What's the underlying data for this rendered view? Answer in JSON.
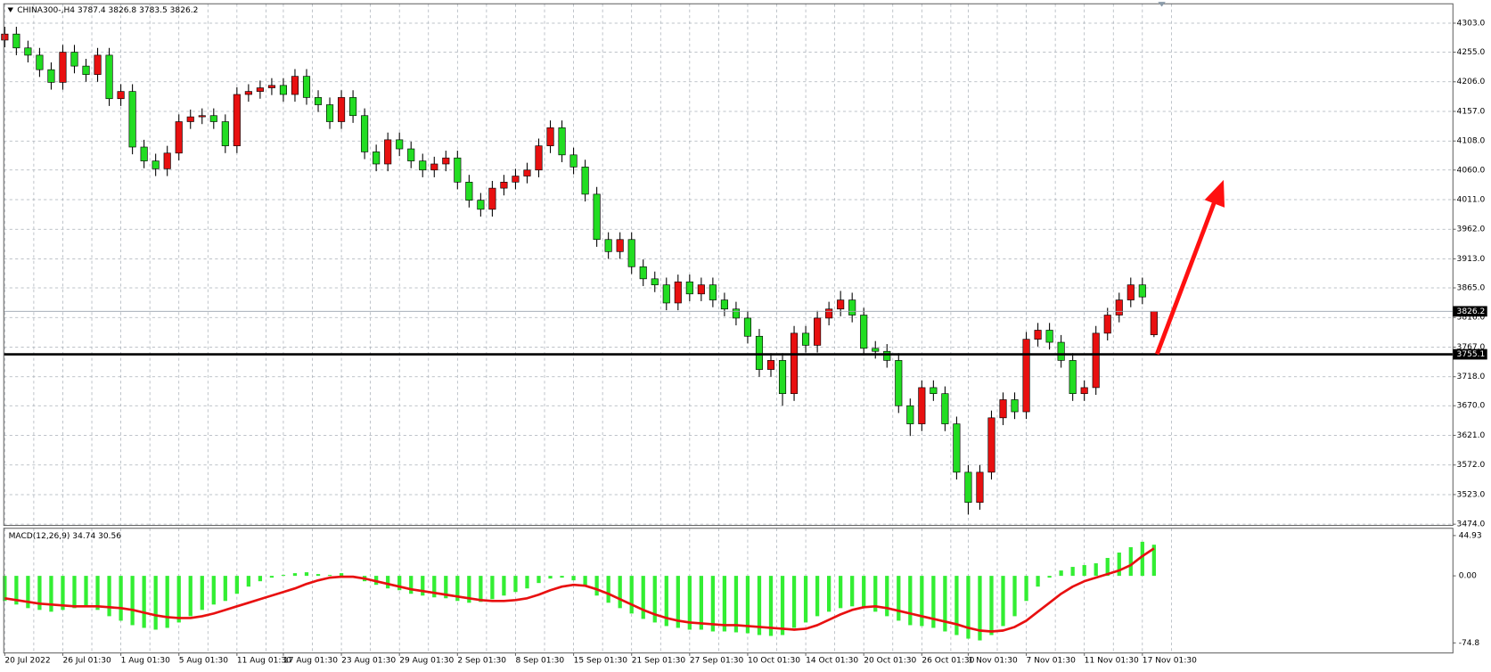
{
  "chart_data": [
    {
      "type": "candlestick",
      "title": "CHINA300-,H4  3787.4 3826.8 3783.5 3826.2",
      "categories": [
        "20 Jul 2022",
        null,
        null,
        null,
        null,
        "26 Jul 01:30",
        null,
        null,
        null,
        null,
        "1 Aug 01:30",
        null,
        null,
        null,
        null,
        "5 Aug 01:30",
        null,
        null,
        null,
        null,
        "11 Aug 01:30",
        null,
        null,
        null,
        "17 Aug 01:30",
        null,
        null,
        null,
        null,
        "23 Aug 01:30",
        null,
        null,
        null,
        null,
        "29 Aug 01:30",
        null,
        null,
        null,
        null,
        "2 Sep 01:30",
        null,
        null,
        null,
        null,
        "8 Sep 01:30",
        null,
        null,
        null,
        null,
        "15 Sep 01:30",
        null,
        null,
        null,
        null,
        "21 Sep 01:30",
        null,
        null,
        null,
        null,
        "27 Sep 01:30",
        null,
        null,
        null,
        null,
        "10 Oct 01:30",
        null,
        null,
        null,
        null,
        "14 Oct 01:30",
        null,
        null,
        null,
        null,
        "20 Oct 01:30",
        null,
        null,
        null,
        null,
        "26 Oct 01:30",
        null,
        null,
        null,
        "1 Nov 01:30",
        null,
        null,
        null,
        null,
        "7 Nov 01:30",
        null,
        null,
        null,
        null,
        "11 Nov 01:30",
        null,
        null,
        null,
        null,
        "17 Nov 01:30",
        null
      ],
      "open": [
        4275,
        4285,
        4262,
        4250,
        4226,
        4205,
        4255,
        4232,
        4218,
        4250,
        4178,
        4190,
        4098,
        4075,
        4062,
        4088,
        4140,
        4148,
        4150,
        4140,
        4100,
        4185,
        4190,
        4196,
        4200,
        4185,
        4215,
        4180,
        4168,
        4140,
        4180,
        4150,
        4090,
        4070,
        4110,
        4095,
        4075,
        4060,
        4070,
        4080,
        4040,
        4010,
        3995,
        4030,
        4040,
        4050,
        4060,
        4100,
        4130,
        4085,
        4065,
        4020,
        3945,
        3925,
        3945,
        3900,
        3880,
        3870,
        3840,
        3875,
        3855,
        3870,
        3845,
        3830,
        3815,
        3785,
        3730,
        3745,
        3690,
        3790,
        3770,
        3815,
        3830,
        3845,
        3820,
        3765,
        3760,
        3745,
        3670,
        3640,
        3700,
        3690,
        3640,
        3560,
        3510,
        3560,
        3650,
        3680,
        3660,
        3780,
        3795,
        3775,
        3745,
        3690,
        3700,
        3790,
        3820,
        3845,
        3870,
        3787.4
      ],
      "high": [
        4297,
        4297,
        4274,
        4262,
        4238,
        4267,
        4267,
        4244,
        4262,
        4262,
        4202,
        4202,
        4110,
        4087,
        4100,
        4152,
        4160,
        4162,
        4162,
        4152,
        4197,
        4202,
        4208,
        4212,
        4212,
        4227,
        4227,
        4192,
        4180,
        4192,
        4192,
        4162,
        4102,
        4122,
        4122,
        4107,
        4087,
        4082,
        4092,
        4092,
        4052,
        4022,
        4042,
        4052,
        4062,
        4072,
        4112,
        4142,
        4142,
        4097,
        4077,
        4032,
        3957,
        3957,
        3957,
        3912,
        3892,
        3882,
        3887,
        3887,
        3882,
        3882,
        3857,
        3842,
        3827,
        3797,
        3757,
        3757,
        3802,
        3802,
        3827,
        3842,
        3860,
        3857,
        3832,
        3777,
        3772,
        3757,
        3682,
        3712,
        3712,
        3702,
        3652,
        3572,
        3572,
        3662,
        3692,
        3692,
        3792,
        3807,
        3807,
        3787,
        3757,
        3712,
        3802,
        3832,
        3857,
        3882,
        3882,
        3826.8
      ],
      "low": [
        4263,
        4250,
        4238,
        4214,
        4193,
        4193,
        4220,
        4206,
        4206,
        4166,
        4166,
        4086,
        4063,
        4050,
        4050,
        4076,
        4128,
        4136,
        4128,
        4088,
        4088,
        4173,
        4178,
        4184,
        4173,
        4173,
        4168,
        4156,
        4128,
        4128,
        4138,
        4078,
        4058,
        4058,
        4083,
        4063,
        4048,
        4048,
        4058,
        4028,
        3998,
        3983,
        3983,
        4018,
        4028,
        4038,
        4048,
        4088,
        4073,
        4053,
        4008,
        3933,
        3913,
        3913,
        3888,
        3868,
        3858,
        3828,
        3828,
        3843,
        3843,
        3833,
        3818,
        3803,
        3773,
        3718,
        3718,
        3670,
        3678,
        3758,
        3758,
        3803,
        3818,
        3808,
        3753,
        3748,
        3733,
        3658,
        3620,
        3628,
        3678,
        3628,
        3548,
        3490,
        3498,
        3548,
        3638,
        3648,
        3648,
        3768,
        3763,
        3733,
        3678,
        3678,
        3688,
        3778,
        3808,
        3833,
        3838,
        3783.5
      ],
      "close": [
        4285,
        4262,
        4250,
        4226,
        4205,
        4255,
        4232,
        4218,
        4250,
        4178,
        4190,
        4098,
        4075,
        4062,
        4088,
        4140,
        4148,
        4150,
        4140,
        4100,
        4185,
        4190,
        4196,
        4200,
        4185,
        4215,
        4180,
        4168,
        4140,
        4180,
        4150,
        4090,
        4070,
        4110,
        4095,
        4075,
        4060,
        4070,
        4080,
        4040,
        4010,
        3995,
        4030,
        4040,
        4050,
        4060,
        4100,
        4130,
        4085,
        4065,
        4020,
        3945,
        3925,
        3945,
        3900,
        3880,
        3870,
        3840,
        3875,
        3855,
        3870,
        3845,
        3830,
        3815,
        3785,
        3730,
        3745,
        3690,
        3790,
        3770,
        3815,
        3830,
        3845,
        3820,
        3765,
        3760,
        3745,
        3670,
        3640,
        3700,
        3690,
        3640,
        3560,
        3510,
        3560,
        3650,
        3680,
        3660,
        3780,
        3795,
        3775,
        3745,
        3690,
        3700,
        3790,
        3820,
        3845,
        3870,
        3850,
        3826.2
      ],
      "up_color": "#e81010",
      "down_color": "#22dd22",
      "ylim": [
        3472,
        4335
      ],
      "yticks": [
        {
          "value": 4303,
          "label": "4303.0"
        },
        {
          "value": 4255,
          "label": "4255.0"
        },
        {
          "value": 4206,
          "label": "4206.0"
        },
        {
          "value": 4157,
          "label": "4157.0"
        },
        {
          "value": 4108,
          "label": "4108.0"
        },
        {
          "value": 4060,
          "label": "4060.0"
        },
        {
          "value": 4011,
          "label": "4011.0"
        },
        {
          "value": 3962,
          "label": "3962.0"
        },
        {
          "value": 3913,
          "label": "3913.0"
        },
        {
          "value": 3865,
          "label": "3865.0"
        },
        {
          "value": 3816,
          "label": "3816.0"
        },
        {
          "value": 3767,
          "label": "3767.0"
        },
        {
          "value": 3718,
          "label": "3718.0"
        },
        {
          "value": 3670,
          "label": "3670.0"
        },
        {
          "value": 3621,
          "label": "3621.0"
        },
        {
          "value": 3572,
          "label": "3572.0"
        },
        {
          "value": 3523,
          "label": "3523.0"
        },
        {
          "value": 3474,
          "label": "3474.0"
        }
      ],
      "grid": true,
      "price_line": 3826.2,
      "level_line": 3755.1
    },
    {
      "type": "macd",
      "title": "MACD(12,26,9) 34.74 30.56",
      "histogram": {
        "color": "#33ee33",
        "values": [
          -28,
          -32,
          -36,
          -38,
          -40,
          -38,
          -36,
          -35,
          -38,
          -45,
          -50,
          -55,
          -58,
          -60,
          -58,
          -52,
          -45,
          -38,
          -32,
          -28,
          -20,
          -12,
          -6,
          -2,
          1,
          3,
          4,
          2,
          1,
          3,
          0,
          -6,
          -10,
          -14,
          -16,
          -20,
          -22,
          -24,
          -25,
          -28,
          -30,
          -29,
          -26,
          -22,
          -18,
          -14,
          -8,
          -3,
          -2,
          -5,
          -12,
          -22,
          -30,
          -36,
          -42,
          -48,
          -52,
          -56,
          -58,
          -60,
          -60,
          -62,
          -62,
          -63,
          -64,
          -66,
          -67,
          -66,
          -58,
          -52,
          -45,
          -40,
          -36,
          -34,
          -36,
          -40,
          -45,
          -50,
          -55,
          -56,
          -58,
          -62,
          -66,
          -70,
          -72,
          -66,
          -56,
          -45,
          -28,
          -12,
          -2,
          6,
          10,
          12,
          14,
          20,
          26,
          32,
          38,
          34.74
        ]
      },
      "signal": {
        "color": "#e81010",
        "values": [
          -25,
          -27,
          -29,
          -31,
          -32,
          -33,
          -34,
          -34,
          -34,
          -35,
          -36,
          -38,
          -41,
          -44,
          -46,
          -47,
          -47,
          -45,
          -42,
          -38,
          -34,
          -30,
          -26,
          -22,
          -18,
          -14,
          -9,
          -5,
          -2,
          -1,
          -1,
          -3,
          -6,
          -9,
          -12,
          -15,
          -17,
          -19,
          -21,
          -23,
          -25,
          -27,
          -28,
          -28,
          -27,
          -25,
          -21,
          -16,
          -12,
          -10,
          -11,
          -15,
          -20,
          -26,
          -32,
          -38,
          -43,
          -47,
          -50,
          -52,
          -53,
          -54,
          -55,
          -55,
          -56,
          -57,
          -58,
          -59,
          -60,
          -59,
          -55,
          -49,
          -43,
          -38,
          -35,
          -34,
          -36,
          -39,
          -42,
          -45,
          -48,
          -51,
          -54,
          -58,
          -61,
          -62,
          -61,
          -57,
          -50,
          -40,
          -30,
          -20,
          -12,
          -6,
          -2,
          2,
          6,
          12,
          22,
          30.56
        ]
      },
      "ylim": [
        -86,
        52
      ],
      "yticks": [
        {
          "value": 44.93,
          "label": "44.93"
        },
        {
          "value": 0,
          "label": "0.00"
        },
        {
          "value": -74.8,
          "label": "-74.8"
        }
      ]
    }
  ]
}
